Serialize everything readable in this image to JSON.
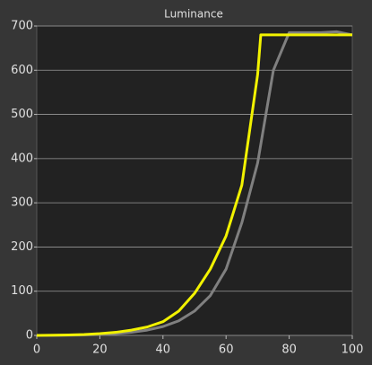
{
  "chart_data": {
    "type": "line",
    "title": "Luminance",
    "series": [
      {
        "color": "#f2f200",
        "x": [
          0,
          5,
          10,
          15,
          20,
          25,
          30,
          35,
          40,
          45,
          50,
          55,
          60,
          65,
          70,
          71,
          75,
          80,
          85,
          90,
          95,
          100
        ],
        "values": [
          0,
          0.5,
          1,
          2,
          4,
          7,
          12,
          19,
          31,
          55,
          95,
          150,
          225,
          340,
          590,
          680,
          680,
          680,
          680,
          680,
          680,
          680
        ]
      },
      {
        "color": "#808080",
        "x": [
          0,
          5,
          10,
          15,
          20,
          25,
          30,
          35,
          40,
          45,
          50,
          55,
          60,
          65,
          70,
          75,
          80,
          85,
          90,
          95,
          100
        ],
        "values": [
          0,
          0,
          0.5,
          1,
          2,
          4,
          7,
          12,
          20,
          33,
          55,
          90,
          150,
          255,
          390,
          600,
          685,
          685,
          685,
          687,
          680
        ]
      }
    ],
    "xlim": [
      0,
      100
    ],
    "xticks": [
      0,
      20,
      40,
      60,
      80,
      100
    ],
    "ylim": [
      0,
      700
    ],
    "yticks": [
      0,
      100,
      200,
      300,
      400,
      500,
      600,
      700
    ],
    "grid": true
  }
}
